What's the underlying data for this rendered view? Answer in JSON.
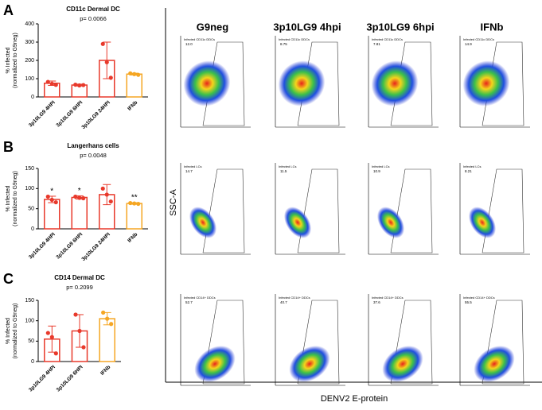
{
  "chart_data": [
    {
      "type": "bar",
      "panel": "A",
      "title": "CD11c Dermal DC",
      "subtitle": "p= 0.0066",
      "ylabel": [
        "% Infected",
        "(normalized to G9neg)"
      ],
      "categories": [
        "3p10LG9 4HPI",
        "3p10LG9 6HPI",
        "3p10LG9 24HPI",
        "IFNb"
      ],
      "values": [
        75,
        65,
        200,
        125
      ],
      "errors": [
        12,
        5,
        100,
        5
      ],
      "points": [
        [
          82,
          72,
          66
        ],
        [
          67,
          63,
          65
        ],
        [
          290,
          190,
          105
        ],
        [
          129,
          125,
          121
        ]
      ],
      "colors": [
        "#e8392b",
        "#e8392b",
        "#e8392b",
        "#f5a623"
      ],
      "ylim": [
        0,
        400
      ],
      "yticks": [
        0,
        100,
        200,
        300,
        400
      ]
    },
    {
      "type": "bar",
      "panel": "B",
      "title": "Langerhans cells",
      "subtitle": "p= 0.0048",
      "ylabel": [
        "% Infected",
        "(normalized to G9neg)"
      ],
      "categories": [
        "3p10LG9 4HPI",
        "3p10LG9 6HPI",
        "3p10LG9 24HPI",
        "IFNb"
      ],
      "values": [
        73,
        78,
        85,
        63
      ],
      "errors": [
        8,
        4,
        25,
        2
      ],
      "points": [
        [
          80,
          72,
          66
        ],
        [
          80,
          77,
          76
        ],
        [
          100,
          85,
          68
        ],
        [
          64,
          63,
          62
        ]
      ],
      "colors": [
        "#e8392b",
        "#e8392b",
        "#e8392b",
        "#f5a623"
      ],
      "stars": [
        "*",
        "*",
        null,
        "**"
      ],
      "ylim": [
        0,
        150
      ],
      "yticks": [
        0,
        50,
        100,
        150
      ]
    },
    {
      "type": "bar",
      "panel": "C",
      "title": "CD14 Dermal DC",
      "subtitle": "p= 0.2099",
      "ylabel": [
        "% Infected",
        "(normalized to G9neg)"
      ],
      "categories": [
        "3p10LG9 4HPI",
        "3p10LG9 6HPI",
        "IFNb"
      ],
      "values": [
        55,
        75,
        105
      ],
      "errors": [
        32,
        40,
        15
      ],
      "points": [
        [
          70,
          60,
          20
        ],
        [
          115,
          75,
          35
        ],
        [
          120,
          105,
          92
        ]
      ],
      "colors": [
        "#e8392b",
        "#e8392b",
        "#f5a623"
      ],
      "ylim": [
        0,
        150
      ],
      "yticks": [
        0,
        50,
        100,
        150
      ]
    }
  ],
  "flow_panel": {
    "columns": [
      "G9neg",
      "3p10LG9 4hpi",
      "3p10LG9 6hpi",
      "IFNb"
    ],
    "ylabel": "SSC-A",
    "xlabel": "DENV2 E-protein",
    "rows": [
      {
        "gate": "Infected CD11c DDCs",
        "values": [
          "12.0",
          "8.75",
          "7.81",
          "14.9"
        ]
      },
      {
        "gate": "Infected LCs",
        "values": [
          "14.7",
          "11.5",
          "10.9",
          "8.21"
        ]
      },
      {
        "gate": "Infected CD14+ DDCs",
        "values": [
          "52.7",
          "40.7",
          "37.6",
          "55.5"
        ]
      }
    ]
  }
}
